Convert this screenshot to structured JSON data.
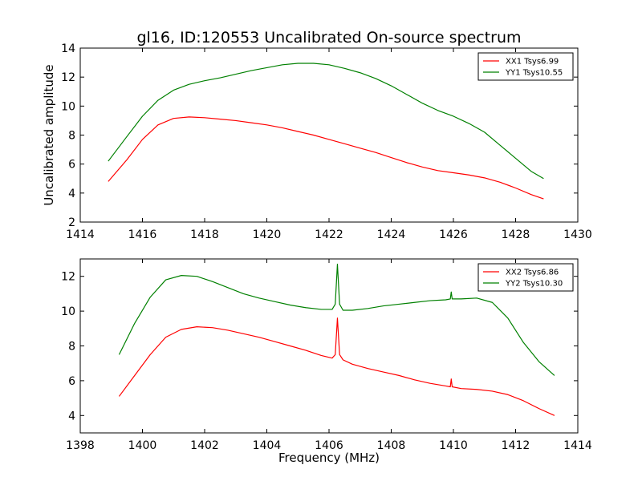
{
  "chart_data": [
    {
      "type": "line",
      "title": "gl16, ID:120553 Uncalibrated On-source spectrum",
      "xlabel": "",
      "ylabel": "Uncalibrated amplitude",
      "xlim": [
        1414,
        1430
      ],
      "ylim": [
        2,
        14
      ],
      "xticks": [
        "1414",
        "1416",
        "1418",
        "1420",
        "1422",
        "1424",
        "1426",
        "1428",
        "1430"
      ],
      "yticks": [
        "2",
        "4",
        "6",
        "8",
        "10",
        "12",
        "14"
      ],
      "legend_position": "top-right",
      "grid": false,
      "series": [
        {
          "name": "XX1 Tsys6.99",
          "color": "#ff0000",
          "x": [
            1414.9,
            1415.5,
            1416.0,
            1416.5,
            1417.0,
            1417.5,
            1418.0,
            1418.5,
            1419.0,
            1419.5,
            1420.0,
            1420.5,
            1421.0,
            1421.5,
            1422.0,
            1422.5,
            1423.0,
            1423.5,
            1424.0,
            1424.5,
            1425.0,
            1425.5,
            1426.0,
            1426.5,
            1427.0,
            1427.5,
            1428.0,
            1428.5,
            1428.9
          ],
          "y": [
            4.8,
            6.3,
            7.7,
            8.7,
            9.15,
            9.25,
            9.2,
            9.1,
            9.0,
            8.85,
            8.7,
            8.5,
            8.25,
            8.0,
            7.7,
            7.4,
            7.1,
            6.8,
            6.45,
            6.1,
            5.8,
            5.55,
            5.4,
            5.25,
            5.05,
            4.75,
            4.35,
            3.9,
            3.6
          ]
        },
        {
          "name": "YY1 Tsys10.55",
          "color": "#008000",
          "x": [
            1414.9,
            1415.5,
            1416.0,
            1416.5,
            1417.0,
            1417.5,
            1418.0,
            1418.5,
            1419.0,
            1419.5,
            1420.0,
            1420.5,
            1421.0,
            1421.5,
            1422.0,
            1422.5,
            1423.0,
            1423.5,
            1424.0,
            1424.5,
            1425.0,
            1425.5,
            1426.0,
            1426.5,
            1427.0,
            1427.5,
            1428.0,
            1428.5,
            1428.9
          ],
          "y": [
            6.2,
            7.9,
            9.3,
            10.4,
            11.1,
            11.5,
            11.75,
            11.95,
            12.2,
            12.45,
            12.65,
            12.85,
            12.95,
            12.95,
            12.85,
            12.6,
            12.3,
            11.9,
            11.4,
            10.8,
            10.2,
            9.7,
            9.3,
            8.8,
            8.2,
            7.3,
            6.4,
            5.5,
            5.0
          ]
        }
      ]
    },
    {
      "type": "line",
      "title": "",
      "xlabel": "Frequency (MHz)",
      "ylabel": "",
      "xlim": [
        1398,
        1414
      ],
      "ylim": [
        3,
        13
      ],
      "xticks": [
        "1398",
        "1400",
        "1402",
        "1404",
        "1406",
        "1408",
        "1410",
        "1412",
        "1414"
      ],
      "yticks": [
        "4",
        "6",
        "8",
        "10",
        "12"
      ],
      "legend_position": "top-right",
      "grid": false,
      "series": [
        {
          "name": "XX2 Tsys6.86",
          "color": "#ff0000",
          "x": [
            1399.25,
            1399.75,
            1400.25,
            1400.75,
            1401.25,
            1401.75,
            1402.25,
            1402.75,
            1403.25,
            1403.75,
            1404.25,
            1404.75,
            1405.25,
            1405.75,
            1406.1,
            1406.2,
            1406.27,
            1406.34,
            1406.45,
            1406.75,
            1407.25,
            1407.75,
            1408.25,
            1408.75,
            1409.25,
            1409.75,
            1409.9,
            1409.93,
            1409.96,
            1410.25,
            1410.75,
            1411.25,
            1411.75,
            1412.25,
            1412.75,
            1413.25
          ],
          "y": [
            5.1,
            6.3,
            7.5,
            8.5,
            8.95,
            9.1,
            9.05,
            8.9,
            8.7,
            8.5,
            8.25,
            8.0,
            7.75,
            7.45,
            7.3,
            7.5,
            9.6,
            7.5,
            7.2,
            6.95,
            6.7,
            6.5,
            6.3,
            6.05,
            5.85,
            5.7,
            5.65,
            6.1,
            5.65,
            5.55,
            5.5,
            5.4,
            5.2,
            4.85,
            4.4,
            4.0
          ]
        },
        {
          "name": "YY2 Tsys10.30",
          "color": "#008000",
          "x": [
            1399.25,
            1399.75,
            1400.25,
            1400.75,
            1401.25,
            1401.75,
            1402.25,
            1402.75,
            1403.25,
            1403.75,
            1404.25,
            1404.75,
            1405.25,
            1405.75,
            1406.1,
            1406.2,
            1406.27,
            1406.34,
            1406.45,
            1406.75,
            1407.25,
            1407.75,
            1408.25,
            1408.75,
            1409.25,
            1409.75,
            1409.9,
            1409.93,
            1409.96,
            1410.25,
            1410.75,
            1411.25,
            1411.75,
            1412.25,
            1412.75,
            1413.25
          ],
          "y": [
            7.5,
            9.3,
            10.8,
            11.8,
            12.05,
            12.0,
            11.7,
            11.35,
            11.0,
            10.75,
            10.55,
            10.35,
            10.2,
            10.1,
            10.1,
            10.4,
            12.7,
            10.4,
            10.05,
            10.05,
            10.15,
            10.3,
            10.4,
            10.5,
            10.6,
            10.65,
            10.7,
            11.1,
            10.7,
            10.7,
            10.75,
            10.5,
            9.6,
            8.2,
            7.1,
            6.3
          ]
        }
      ]
    }
  ]
}
